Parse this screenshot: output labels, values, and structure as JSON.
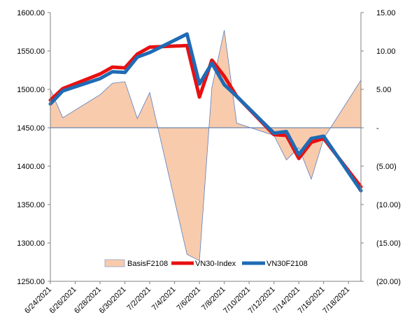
{
  "chart_data": {
    "type": "line",
    "title": "",
    "x": [
      "6/24/2021",
      "6/25/2021",
      "6/28/2021",
      "6/29/2021",
      "6/30/2021",
      "7/1/2021",
      "7/2/2021",
      "7/5/2021",
      "7/6/2021",
      "7/7/2021",
      "7/8/2021",
      "7/9/2021",
      "7/12/2021",
      "7/13/2021",
      "7/14/2021",
      "7/15/2021",
      "7/16/2021",
      "7/19/2021"
    ],
    "x_tick_labels": [
      "6/24/2021",
      "6/26/2021",
      "6/28/2021",
      "6/30/2021",
      "7/2/2021",
      "7/4/2021",
      "7/6/2021",
      "7/8/2021",
      "7/10/2021",
      "7/12/2021",
      "7/14/2021",
      "7/16/2021",
      "7/18/2021"
    ],
    "x_range": [
      "6/24/2021",
      "7/19/2021"
    ],
    "y_left": {
      "range": [
        1250,
        1600
      ],
      "ticks": [
        "1250.00",
        "1300.00",
        "1350.00",
        "1400.00",
        "1450.00",
        "1500.00",
        "1550.00",
        "1600.00"
      ]
    },
    "y_right": {
      "range": [
        -20,
        15
      ],
      "ticks": [
        "(20.00)",
        "(15.00)",
        "(10.00)",
        "(5.00)",
        "-",
        "5.00",
        "10.00",
        "15.00"
      ]
    },
    "series": [
      {
        "name": "BasisF2108",
        "type": "area",
        "axis": "right",
        "color": "#f8cbad",
        "edge_color": "#5b7fbf",
        "x": [
          "6/24/2021",
          "6/25/2021",
          "6/28/2021",
          "6/29/2021",
          "6/30/2021",
          "7/1/2021",
          "7/2/2021",
          "7/5/2021",
          "7/6/2021",
          "7/7/2021",
          "7/8/2021",
          "7/9/2021",
          "7/12/2021",
          "7/13/2021",
          "7/14/2021",
          "7/15/2021",
          "7/16/2021",
          "7/19/2021"
        ],
        "values": [
          5.0,
          1.3,
          4.3,
          5.8,
          6.0,
          1.2,
          4.6,
          -16.5,
          -17.3,
          5.2,
          12.7,
          0.6,
          -1.0,
          -4.2,
          -2.6,
          -6.7,
          -1.4,
          6.2
        ]
      },
      {
        "name": "VN30-Index",
        "type": "line",
        "axis": "left",
        "color": "#e81010",
        "x": [
          "6/24/2021",
          "6/25/2021",
          "6/28/2021",
          "6/29/2021",
          "6/30/2021",
          "7/1/2021",
          "7/2/2021",
          "7/5/2021",
          "7/6/2021",
          "7/7/2021",
          "7/8/2021",
          "7/9/2021",
          "7/12/2021",
          "7/13/2021",
          "7/14/2021",
          "7/15/2021",
          "7/16/2021",
          "7/19/2021"
        ],
        "values": [
          1486,
          1501,
          1520,
          1529,
          1528,
          1546,
          1555,
          1557,
          1490,
          1538,
          1517,
          1491,
          1441,
          1440,
          1410,
          1431,
          1436,
          1373
        ]
      },
      {
        "name": "VN30F2108",
        "type": "line",
        "axis": "left",
        "color": "#1f6bb5",
        "x": [
          "6/24/2021",
          "6/25/2021",
          "6/28/2021",
          "6/29/2021",
          "6/30/2021",
          "7/1/2021",
          "7/2/2021",
          "7/5/2021",
          "7/6/2021",
          "7/7/2021",
          "7/8/2021",
          "7/9/2021",
          "7/12/2021",
          "7/13/2021",
          "7/14/2021",
          "7/15/2021",
          "7/16/2021",
          "7/19/2021"
        ],
        "values": [
          1481,
          1498,
          1514,
          1523,
          1522,
          1542,
          1548,
          1572,
          1507,
          1534,
          1506,
          1491,
          1443,
          1445,
          1415,
          1436,
          1439,
          1368
        ]
      }
    ],
    "grid": false,
    "legend_position": "bottom-center-inside"
  }
}
